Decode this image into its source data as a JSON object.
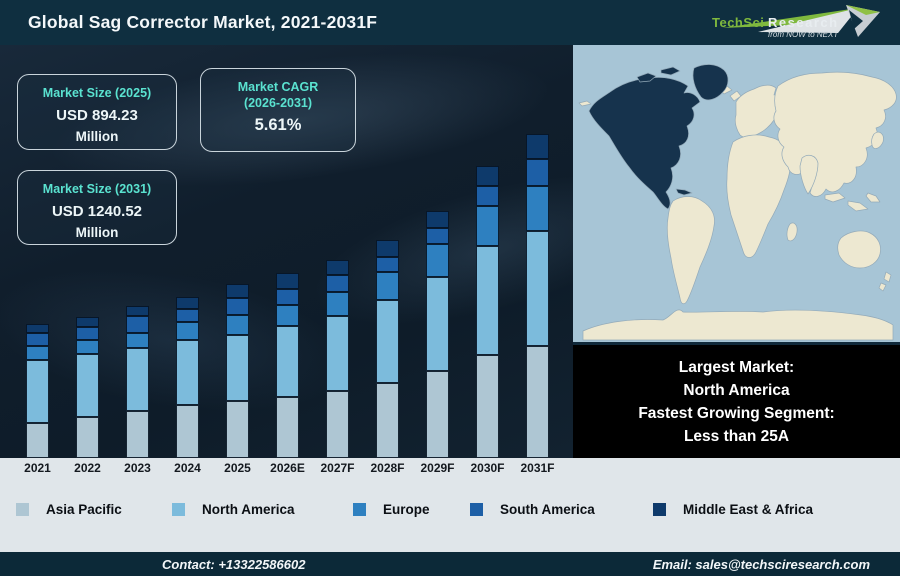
{
  "header": {
    "title": "Global Sag Corrector Market, 2021-2031F",
    "logo": {
      "brand_primary": "TechSci",
      "brand_secondary": "Research",
      "tagline": "from NOW to NEXT"
    }
  },
  "stats": [
    {
      "label": "Market Size (2025)",
      "value": "USD 894.23",
      "unit": "Million"
    },
    {
      "label": "Market CAGR",
      "label2": "(2026-2031)",
      "value": "5.61%",
      "unit": ""
    },
    {
      "label": "Market Size (2031)",
      "value": "USD 1240.52",
      "unit": "Million"
    }
  ],
  "chart_data": {
    "type": "bar",
    "stacked": true,
    "title": "Global Sag Corrector Market, 2021-2031F",
    "categories": [
      "2021",
      "2022",
      "2023",
      "2024",
      "2025",
      "2026E",
      "2027F",
      "2028F",
      "2029F",
      "2030F",
      "2031F"
    ],
    "value_unit": "relative height (no y-axis shown in figure), px",
    "series": [
      {
        "name": "Asia Pacific",
        "color": "#aec6d3",
        "values": [
          35,
          41,
          47,
          53,
          57,
          61,
          67,
          75,
          87,
          103,
          112
        ]
      },
      {
        "name": "North America",
        "color": "#7cbbdc",
        "values": [
          63,
          63,
          63,
          65,
          66,
          71,
          75,
          83,
          94,
          109,
          115
        ]
      },
      {
        "name": "Europe",
        "color": "#2e80c0",
        "values": [
          14,
          14,
          15,
          18,
          20,
          21,
          24,
          28,
          33,
          40,
          45
        ]
      },
      {
        "name": "South America",
        "color": "#1d5fa6",
        "values": [
          13,
          13,
          17,
          13,
          17,
          16,
          17,
          15,
          16,
          20,
          27
        ]
      },
      {
        "name": "Middle East & Africa",
        "color": "#0e3a6b",
        "values": [
          9,
          10,
          10,
          12,
          14,
          16,
          15,
          17,
          17,
          20,
          25
        ]
      }
    ],
    "legend_position": "bottom",
    "grid": false,
    "annotations": {
      "market_size_2025": "USD 894.23 Million",
      "market_size_2031": "USD 1240.52 Million",
      "cagr_2026_2031": "5.61%"
    }
  },
  "info_box": {
    "lines": [
      "Largest Market:",
      "North America",
      "Fastest Growing Segment:",
      "Less than 25A"
    ]
  },
  "map": {
    "highlighted_region": "North America"
  },
  "footer": {
    "contact": "Contact: +13322586602",
    "email": "Email: sales@techsciresearch.com"
  },
  "colors": {
    "accent_teal": "#5ae2d0",
    "header_bg": "#0f2f40",
    "footer_bg": "#0c2938",
    "chart_bg": "#101e2c",
    "band_bg": "#e0e6ea",
    "info_box_bg": "#000000",
    "map_ocean": "#a7c5d6",
    "map_land": "#ede8d1",
    "map_highlight": "#16334d",
    "logo_green": "#7fb93e"
  }
}
